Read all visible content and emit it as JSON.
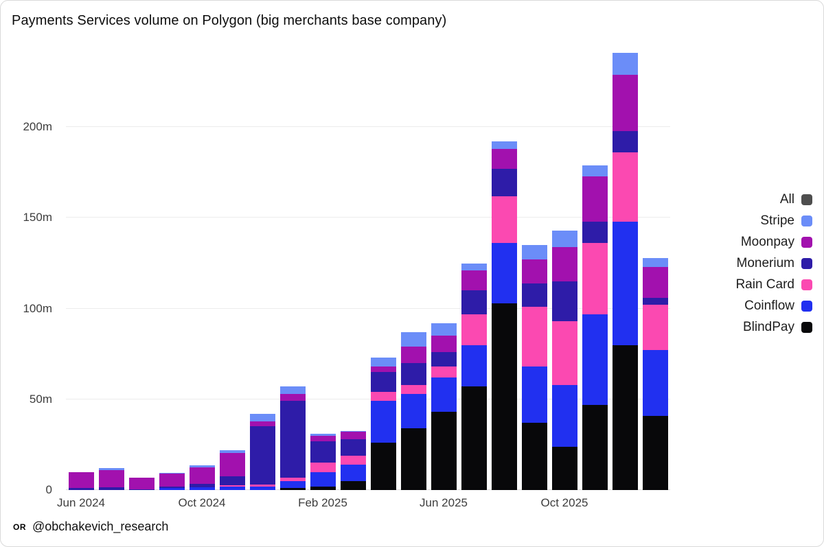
{
  "footer": {
    "logo_text": "OR",
    "handle": "@obchakevich_research"
  },
  "chart_data": {
    "type": "bar",
    "stacked": true,
    "title": "Payments Services volume on Polygon (big merchants base company)",
    "unit": "millions",
    "background": "#ffffff",
    "grid": "horizontal",
    "legend_position": "right",
    "y_axis_max": 247,
    "y_ticks": [
      {
        "value": 0,
        "label": "0"
      },
      {
        "value": 50,
        "label": "50m"
      },
      {
        "value": 100,
        "label": "100m"
      },
      {
        "value": 150,
        "label": "150m"
      },
      {
        "value": 200,
        "label": "200m"
      }
    ],
    "x": [
      "Jun 2024",
      "Jul 2024",
      "Aug 2024",
      "Sep 2024",
      "Oct 2024",
      "Nov 2024",
      "Dec 2024",
      "Jan 2025",
      "Feb 2025",
      "Mar 2025",
      "Apr 2025",
      "May 2025",
      "Jun 2025",
      "Jul 2025",
      "Aug 2025",
      "Sep 2025",
      "Oct 2025",
      "Nov 2025",
      "Dec 2025",
      "Jan 2026"
    ],
    "x_ticks": [
      {
        "index": 0,
        "label": "Jun 2024"
      },
      {
        "index": 4,
        "label": "Oct 2024"
      },
      {
        "index": 8,
        "label": "Feb 2025"
      },
      {
        "index": 12,
        "label": "Jun 2025"
      },
      {
        "index": 16,
        "label": "Oct 2025"
      }
    ],
    "series": [
      {
        "name": "BlindPay",
        "color": "#08080a",
        "values": [
          0,
          0,
          0,
          0,
          0,
          0,
          0,
          1,
          2,
          5,
          26,
          34,
          43,
          57,
          103,
          37,
          24,
          47,
          80,
          41
        ]
      },
      {
        "name": "Coinflow",
        "color": "#2130f0",
        "values": [
          0,
          0,
          0,
          1,
          1.5,
          2,
          2,
          4,
          8,
          9,
          23,
          19,
          19,
          23,
          33,
          31,
          34,
          50,
          68,
          36
        ]
      },
      {
        "name": "Rain Card",
        "color": "#fb49b1",
        "values": [
          0,
          0,
          0,
          0,
          0,
          0.5,
          1,
          2,
          5,
          5,
          5,
          5,
          6,
          17,
          26,
          33,
          35,
          39,
          38,
          25
        ]
      },
      {
        "name": "Monerium",
        "color": "#2e1ca8",
        "values": [
          1,
          1.5,
          0.5,
          1,
          2,
          5,
          32,
          42,
          12,
          9,
          11,
          12,
          8,
          13,
          15,
          13,
          22,
          12,
          12,
          4
        ]
      },
      {
        "name": "Moonpay",
        "color": "#a211ae",
        "values": [
          9,
          9.5,
          6.5,
          7,
          9,
          13,
          3,
          4,
          3,
          4,
          3,
          9,
          9,
          11,
          11,
          13,
          19,
          25,
          31,
          17
        ]
      },
      {
        "name": "Stripe",
        "color": "#6b8df8",
        "values": [
          0,
          1,
          0,
          0.5,
          1,
          1.5,
          4,
          4,
          1,
          0.5,
          5,
          8,
          7,
          4,
          4,
          8,
          9,
          6,
          12,
          5
        ]
      }
    ],
    "legend": [
      {
        "label": "All",
        "color": "#4e4e4e"
      },
      {
        "label": "Stripe",
        "color": "#6b8df8"
      },
      {
        "label": "Moonpay",
        "color": "#a211ae"
      },
      {
        "label": "Monerium",
        "color": "#2e1ca8"
      },
      {
        "label": "Rain Card",
        "color": "#fb49b1"
      },
      {
        "label": "Coinflow",
        "color": "#2130f0"
      },
      {
        "label": "BlindPay",
        "color": "#08080a"
      }
    ]
  }
}
